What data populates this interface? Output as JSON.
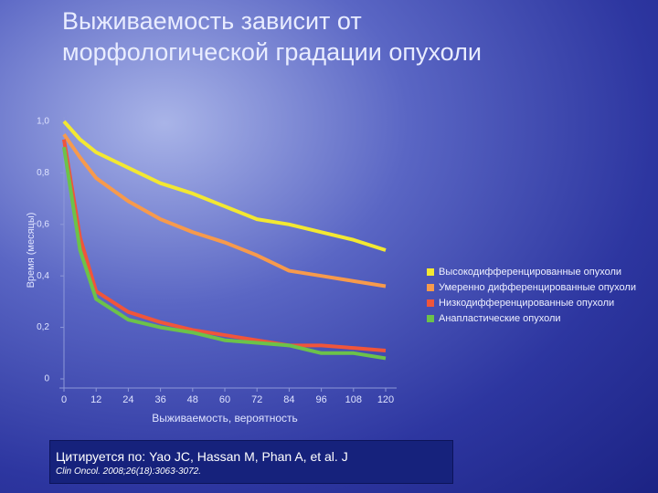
{
  "chart_data": {
    "type": "line",
    "title": [
      "Выживаемость зависит от",
      "морфологической градации опухоли"
    ],
    "x_label": "Выживаемость, вероятность",
    "y_label": "Время (месяцы)",
    "x": [
      0,
      6,
      12,
      24,
      36,
      48,
      60,
      72,
      84,
      96,
      108,
      120
    ],
    "xlim": [
      0,
      120
    ],
    "xticks": [
      0,
      12,
      24,
      36,
      48,
      60,
      72,
      84,
      96,
      108,
      120
    ],
    "ylim": [
      0,
      1
    ],
    "yticks": [
      0,
      {
        "value": 0.2,
        "label": "0,2"
      },
      {
        "value": 0.4,
        "label": "0,4"
      },
      {
        "value": 0.6,
        "label": "0,6"
      },
      {
        "value": 0.8,
        "label": "0,8"
      },
      {
        "value": 1,
        "label": "1,0"
      }
    ],
    "series": [
      {
        "name": "Высокодифференцированные опухоли",
        "color": "#f3e832",
        "values": [
          1.0,
          0.93,
          0.88,
          0.82,
          0.76,
          0.72,
          0.67,
          0.62,
          0.6,
          0.57,
          0.54,
          0.5
        ]
      },
      {
        "name": "Умеренно дифференцированные опухоли",
        "color": "#f79a4c",
        "values": [
          0.95,
          0.86,
          0.78,
          0.69,
          0.62,
          0.57,
          0.53,
          0.48,
          0.42,
          0.4,
          0.38,
          0.36
        ]
      },
      {
        "name": "Низкодифференцированные опухоли",
        "color": "#f0553a",
        "values": [
          0.93,
          0.55,
          0.34,
          0.26,
          0.22,
          0.19,
          0.17,
          0.15,
          0.13,
          0.13,
          0.12,
          0.11
        ]
      },
      {
        "name": "Анапластические опухоли",
        "color": "#6cc24a",
        "values": [
          0.9,
          0.5,
          0.31,
          0.23,
          0.2,
          0.18,
          0.15,
          0.14,
          0.13,
          0.1,
          0.1,
          0.08
        ]
      }
    ],
    "citation": [
      "Цитируется по: Yao JC, Hassan M, Phan A, et al. J",
      "Clin Oncol. 2008;26(18):3063-3072."
    ]
  }
}
